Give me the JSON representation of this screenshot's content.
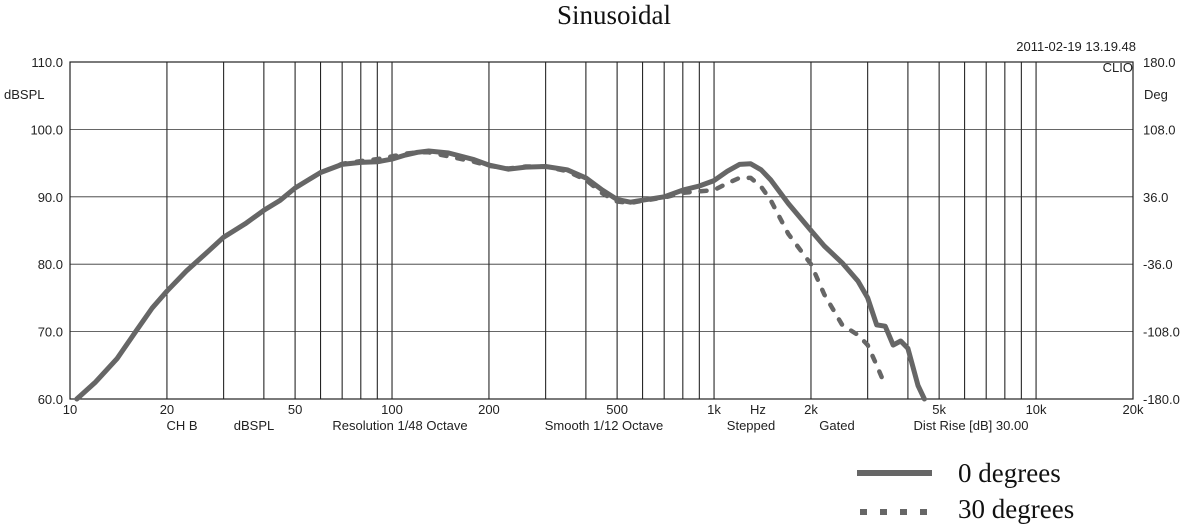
{
  "chart_data": {
    "type": "line",
    "title": "Sinusoidal",
    "timestamp": "2011-02-19 13.19.48",
    "brand": "CLIO",
    "y_left_unit": "dBSPL",
    "y_right_unit": "Deg",
    "x_unit_label": "Hz",
    "x_scale": "log",
    "xlim": [
      10,
      20000
    ],
    "ylim": [
      60,
      110
    ],
    "y2lim": [
      -180,
      180
    ],
    "grid": true,
    "x_ticks": [
      {
        "value": 10,
        "label": "10"
      },
      {
        "value": 20,
        "label": "20"
      },
      {
        "value": 50,
        "label": "50"
      },
      {
        "value": 100,
        "label": "100"
      },
      {
        "value": 200,
        "label": "200"
      },
      {
        "value": 500,
        "label": "500"
      },
      {
        "value": 1000,
        "label": "1k"
      },
      {
        "value": 2000,
        "label": "2k"
      },
      {
        "value": 5000,
        "label": "5k"
      },
      {
        "value": 10000,
        "label": "10k"
      },
      {
        "value": 20000,
        "label": "20k"
      }
    ],
    "y_ticks_left": [
      {
        "value": 60,
        "label": "60.0"
      },
      {
        "value": 70,
        "label": "70.0"
      },
      {
        "value": 80,
        "label": "80.0"
      },
      {
        "value": 90,
        "label": "90.0"
      },
      {
        "value": 100,
        "label": "100.0"
      },
      {
        "value": 110,
        "label": "110.0"
      }
    ],
    "y_ticks_right": [
      {
        "value": -180,
        "label": "-180.0"
      },
      {
        "value": -108,
        "label": "-108.0"
      },
      {
        "value": -36,
        "label": "-36.0"
      },
      {
        "value": 36,
        "label": "36.0"
      },
      {
        "value": 108,
        "label": "108.0"
      },
      {
        "value": 180,
        "label": "180.0"
      }
    ],
    "status_items": [
      "CH B",
      "dBSPL",
      "Resolution 1/48 Octave",
      "Smooth 1/12 Octave",
      "Stepped",
      "Gated",
      "Dist Rise [dB] 30.00"
    ],
    "legend_position": "bottom-right",
    "series": [
      {
        "name": "0 degrees",
        "style": "solid",
        "color": "#666666",
        "points": [
          [
            10.5,
            60.0
          ],
          [
            12,
            62.5
          ],
          [
            14,
            66.0
          ],
          [
            16,
            70.0
          ],
          [
            18,
            73.5
          ],
          [
            20,
            76.0
          ],
          [
            23,
            79.0
          ],
          [
            27,
            82.0
          ],
          [
            30,
            84.0
          ],
          [
            35,
            86.0
          ],
          [
            40,
            88.0
          ],
          [
            45,
            89.5
          ],
          [
            50,
            91.3
          ],
          [
            55,
            92.5
          ],
          [
            60,
            93.6
          ],
          [
            70,
            94.8
          ],
          [
            80,
            95.1
          ],
          [
            90,
            95.2
          ],
          [
            100,
            95.6
          ],
          [
            110,
            96.2
          ],
          [
            120,
            96.6
          ],
          [
            130,
            96.8
          ],
          [
            150,
            96.5
          ],
          [
            180,
            95.5
          ],
          [
            200,
            94.7
          ],
          [
            230,
            94.1
          ],
          [
            260,
            94.4
          ],
          [
            300,
            94.5
          ],
          [
            350,
            94.0
          ],
          [
            400,
            92.8
          ],
          [
            450,
            91.0
          ],
          [
            500,
            89.6
          ],
          [
            550,
            89.2
          ],
          [
            600,
            89.5
          ],
          [
            700,
            90.0
          ],
          [
            800,
            91.0
          ],
          [
            900,
            91.6
          ],
          [
            1000,
            92.4
          ],
          [
            1100,
            93.8
          ],
          [
            1200,
            94.8
          ],
          [
            1300,
            94.9
          ],
          [
            1400,
            94.0
          ],
          [
            1500,
            92.5
          ],
          [
            1700,
            89.0
          ],
          [
            2000,
            85.0
          ],
          [
            2200,
            82.7
          ],
          [
            2500,
            80.2
          ],
          [
            2800,
            77.5
          ],
          [
            3000,
            75.0
          ],
          [
            3200,
            71.0
          ],
          [
            3400,
            70.8
          ],
          [
            3600,
            68.0
          ],
          [
            3800,
            68.6
          ],
          [
            4000,
            67.5
          ],
          [
            4300,
            62.0
          ],
          [
            4500,
            60.0
          ]
        ]
      },
      {
        "name": "30 degrees",
        "style": "dotted",
        "color": "#666666",
        "points": [
          [
            10.5,
            60.0
          ],
          [
            12,
            62.5
          ],
          [
            14,
            66.0
          ],
          [
            16,
            70.0
          ],
          [
            18,
            73.5
          ],
          [
            20,
            76.0
          ],
          [
            23,
            79.0
          ],
          [
            27,
            82.0
          ],
          [
            30,
            84.0
          ],
          [
            35,
            86.0
          ],
          [
            40,
            88.0
          ],
          [
            45,
            89.5
          ],
          [
            50,
            91.3
          ],
          [
            55,
            92.5
          ],
          [
            60,
            93.6
          ],
          [
            70,
            94.9
          ],
          [
            80,
            95.3
          ],
          [
            90,
            95.6
          ],
          [
            100,
            96.0
          ],
          [
            110,
            96.4
          ],
          [
            120,
            96.6
          ],
          [
            130,
            96.6
          ],
          [
            150,
            96.0
          ],
          [
            180,
            95.2
          ],
          [
            200,
            94.6
          ],
          [
            230,
            94.2
          ],
          [
            260,
            94.5
          ],
          [
            300,
            94.5
          ],
          [
            350,
            93.8
          ],
          [
            400,
            92.5
          ],
          [
            450,
            90.5
          ],
          [
            500,
            89.3
          ],
          [
            550,
            89.1
          ],
          [
            600,
            89.4
          ],
          [
            700,
            89.9
          ],
          [
            800,
            90.6
          ],
          [
            900,
            90.8
          ],
          [
            1000,
            91.0
          ],
          [
            1100,
            92.0
          ],
          [
            1200,
            92.8
          ],
          [
            1300,
            92.8
          ],
          [
            1400,
            91.5
          ],
          [
            1500,
            89.5
          ],
          [
            1700,
            84.5
          ],
          [
            2000,
            80.0
          ],
          [
            2200,
            75.5
          ],
          [
            2500,
            71.0
          ],
          [
            2800,
            69.5
          ],
          [
            3000,
            68.0
          ],
          [
            3200,
            65.0
          ],
          [
            3400,
            62.0
          ]
        ]
      }
    ]
  }
}
